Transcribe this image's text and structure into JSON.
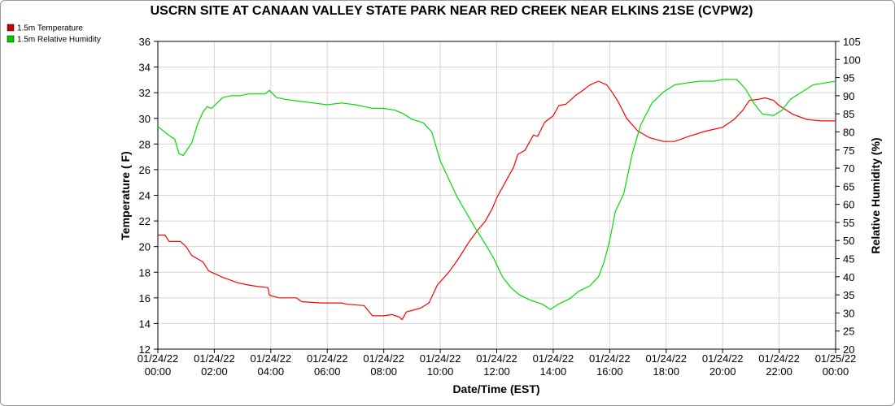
{
  "chart_data": {
    "type": "line",
    "title": "USCRN SITE AT CANAAN VALLEY STATE PARK NEAR RED CREEK NEAR ELKINS 21SE (CVPW2)",
    "xlabel": "Date/Time (EST)",
    "ylabel_left": "Temperature ( F)",
    "ylabel_right": "Relative Humidity (%)",
    "ylim_left": [
      12,
      36
    ],
    "ylim_right": [
      20,
      105
    ],
    "yticks_left": [
      "12",
      "14",
      "16",
      "18",
      "20",
      "22",
      "24",
      "26",
      "28",
      "30",
      "32",
      "34",
      "36"
    ],
    "yticks_right": [
      "20",
      "25",
      "30",
      "35",
      "40",
      "45",
      "50",
      "55",
      "60",
      "65",
      "70",
      "75",
      "80",
      "85",
      "90",
      "95",
      "100",
      "105"
    ],
    "xlim_hours": [
      0,
      24
    ],
    "x_ticks": [
      {
        "date": "01/24/22",
        "time": "00:00"
      },
      {
        "date": "01/24/22",
        "time": "02:00"
      },
      {
        "date": "01/24/22",
        "time": "04:00"
      },
      {
        "date": "01/24/22",
        "time": "06:00"
      },
      {
        "date": "01/24/22",
        "time": "08:00"
      },
      {
        "date": "01/24/22",
        "time": "10:00"
      },
      {
        "date": "01/24/22",
        "time": "12:00"
      },
      {
        "date": "01/24/22",
        "time": "14:00"
      },
      {
        "date": "01/24/22",
        "time": "16:00"
      },
      {
        "date": "01/24/22",
        "time": "18:00"
      },
      {
        "date": "01/24/22",
        "time": "20:00"
      },
      {
        "date": "01/24/22",
        "time": "22:00"
      },
      {
        "date": "01/25/22",
        "time": "00:00"
      }
    ],
    "grid": true,
    "legend_position": "top-left",
    "series": [
      {
        "name": "1.5m Temperature",
        "color": "#ff0000",
        "legend_color": "#cc0000",
        "axis": "left",
        "points": [
          [
            0.0,
            20.9
          ],
          [
            0.25,
            20.9
          ],
          [
            0.4,
            20.4
          ],
          [
            0.8,
            20.4
          ],
          [
            1.0,
            20.0
          ],
          [
            1.2,
            19.3
          ],
          [
            1.6,
            18.8
          ],
          [
            1.8,
            18.1
          ],
          [
            2.3,
            17.6
          ],
          [
            2.8,
            17.2
          ],
          [
            3.2,
            17.0
          ],
          [
            3.5,
            16.9
          ],
          [
            3.9,
            16.8
          ],
          [
            3.95,
            16.2
          ],
          [
            4.3,
            16.0
          ],
          [
            4.9,
            16.0
          ],
          [
            5.1,
            15.7
          ],
          [
            5.8,
            15.6
          ],
          [
            6.5,
            15.6
          ],
          [
            6.7,
            15.5
          ],
          [
            7.3,
            15.4
          ],
          [
            7.6,
            14.6
          ],
          [
            8.0,
            14.6
          ],
          [
            8.3,
            14.7
          ],
          [
            8.55,
            14.5
          ],
          [
            8.65,
            14.3
          ],
          [
            8.8,
            14.9
          ],
          [
            9.3,
            15.2
          ],
          [
            9.6,
            15.6
          ],
          [
            9.9,
            17.0
          ],
          [
            10.3,
            18.0
          ],
          [
            10.6,
            18.9
          ],
          [
            10.8,
            19.6
          ],
          [
            11.0,
            20.3
          ],
          [
            11.3,
            21.2
          ],
          [
            11.6,
            22.0
          ],
          [
            11.85,
            23.0
          ],
          [
            12.0,
            23.8
          ],
          [
            12.3,
            25.0
          ],
          [
            12.6,
            26.2
          ],
          [
            12.75,
            27.2
          ],
          [
            13.0,
            27.5
          ],
          [
            13.3,
            28.7
          ],
          [
            13.45,
            28.6
          ],
          [
            13.7,
            29.7
          ],
          [
            14.0,
            30.2
          ],
          [
            14.2,
            31.0
          ],
          [
            14.45,
            31.1
          ],
          [
            14.8,
            31.8
          ],
          [
            15.0,
            32.1
          ],
          [
            15.3,
            32.6
          ],
          [
            15.6,
            32.9
          ],
          [
            15.9,
            32.6
          ],
          [
            16.1,
            32.0
          ],
          [
            16.3,
            31.3
          ],
          [
            16.6,
            30.0
          ],
          [
            17.0,
            29.0
          ],
          [
            17.4,
            28.5
          ],
          [
            17.9,
            28.2
          ],
          [
            18.3,
            28.2
          ],
          [
            18.8,
            28.6
          ],
          [
            19.4,
            29.0
          ],
          [
            20.0,
            29.3
          ],
          [
            20.4,
            29.9
          ],
          [
            20.7,
            30.6
          ],
          [
            20.95,
            31.4
          ],
          [
            21.3,
            31.5
          ],
          [
            21.5,
            31.6
          ],
          [
            21.8,
            31.4
          ],
          [
            22.0,
            31.0
          ],
          [
            22.5,
            30.3
          ],
          [
            23.0,
            29.9
          ],
          [
            23.5,
            29.8
          ],
          [
            24.0,
            29.8
          ]
        ]
      },
      {
        "name": "1.5m Relative Humidity",
        "color": "#00dd00",
        "legend_color": "#00cc00",
        "axis": "right",
        "points": [
          [
            0.0,
            81.5
          ],
          [
            0.4,
            79
          ],
          [
            0.6,
            78
          ],
          [
            0.75,
            74
          ],
          [
            0.9,
            73.5
          ],
          [
            1.2,
            77
          ],
          [
            1.4,
            82
          ],
          [
            1.6,
            85.5
          ],
          [
            1.75,
            87
          ],
          [
            1.9,
            86.5
          ],
          [
            2.1,
            88
          ],
          [
            2.3,
            89.5
          ],
          [
            2.6,
            90
          ],
          [
            2.9,
            90
          ],
          [
            3.2,
            90.5
          ],
          [
            3.6,
            90.5
          ],
          [
            3.8,
            90.5
          ],
          [
            3.95,
            91.5
          ],
          [
            4.2,
            89.5
          ],
          [
            4.5,
            89
          ],
          [
            5.0,
            88.5
          ],
          [
            5.5,
            88
          ],
          [
            6.0,
            87.5
          ],
          [
            6.5,
            88
          ],
          [
            7.0,
            87.5
          ],
          [
            7.3,
            87
          ],
          [
            7.6,
            86.5
          ],
          [
            8.0,
            86.5
          ],
          [
            8.4,
            86
          ],
          [
            8.7,
            85
          ],
          [
            9.0,
            83.5
          ],
          [
            9.4,
            82.5
          ],
          [
            9.7,
            80
          ],
          [
            10.0,
            72
          ],
          [
            10.3,
            67
          ],
          [
            10.6,
            62
          ],
          [
            10.9,
            58
          ],
          [
            11.2,
            54
          ],
          [
            11.6,
            49
          ],
          [
            11.9,
            45
          ],
          [
            12.2,
            40
          ],
          [
            12.5,
            37
          ],
          [
            12.8,
            35
          ],
          [
            13.2,
            33.5
          ],
          [
            13.6,
            32.5
          ],
          [
            13.9,
            31
          ],
          [
            14.2,
            32.5
          ],
          [
            14.6,
            34
          ],
          [
            14.9,
            36
          ],
          [
            15.3,
            37.5
          ],
          [
            15.6,
            40
          ],
          [
            15.8,
            44
          ],
          [
            16.0,
            50
          ],
          [
            16.2,
            58
          ],
          [
            16.5,
            63
          ],
          [
            16.8,
            74
          ],
          [
            17.1,
            82
          ],
          [
            17.5,
            88
          ],
          [
            17.9,
            91
          ],
          [
            18.3,
            93
          ],
          [
            18.7,
            93.5
          ],
          [
            19.2,
            94
          ],
          [
            19.7,
            94
          ],
          [
            20.0,
            94.5
          ],
          [
            20.5,
            94.5
          ],
          [
            20.8,
            92
          ],
          [
            21.1,
            88
          ],
          [
            21.4,
            85
          ],
          [
            21.8,
            84.5
          ],
          [
            22.1,
            86
          ],
          [
            22.4,
            89
          ],
          [
            22.8,
            91
          ],
          [
            23.2,
            93
          ],
          [
            23.6,
            93.5
          ],
          [
            24.0,
            94
          ]
        ]
      }
    ]
  }
}
